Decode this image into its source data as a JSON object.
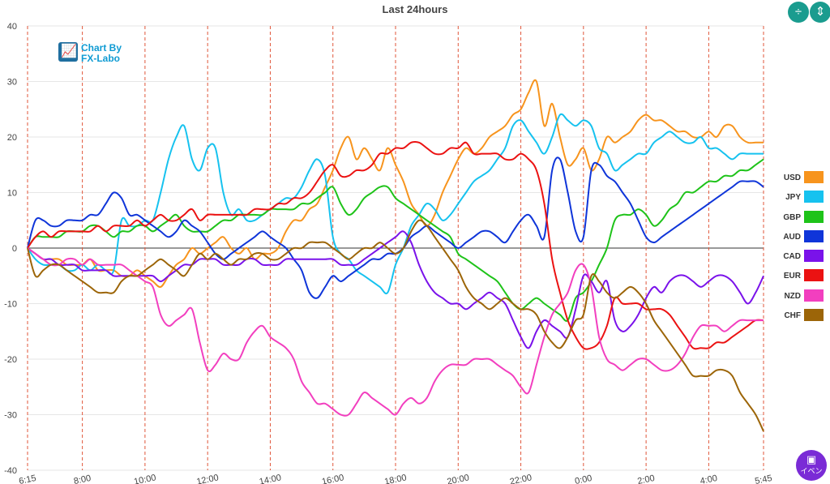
{
  "chart_data": {
    "type": "line",
    "title": "Last 24hours",
    "x": [
      "6:15",
      "6:30",
      "6:45",
      "7:00",
      "7:15",
      "7:30",
      "7:45",
      "8:00",
      "8:15",
      "8:30",
      "8:45",
      "9:00",
      "9:15",
      "9:30",
      "9:45",
      "10:00",
      "10:15",
      "10:30",
      "10:45",
      "11:00",
      "11:15",
      "11:30",
      "11:45",
      "12:00",
      "12:15",
      "12:30",
      "12:45",
      "13:00",
      "13:15",
      "13:30",
      "13:45",
      "14:00",
      "14:15",
      "14:30",
      "14:45",
      "15:00",
      "15:15",
      "15:30",
      "15:45",
      "16:00",
      "16:15",
      "16:30",
      "16:45",
      "17:00",
      "17:15",
      "17:30",
      "17:45",
      "18:00",
      "18:15",
      "18:30",
      "18:45",
      "19:00",
      "19:15",
      "19:30",
      "19:45",
      "20:00",
      "20:15",
      "20:30",
      "20:45",
      "21:00",
      "21:15",
      "21:30",
      "21:45",
      "22:00",
      "22:15",
      "22:30",
      "22:45",
      "23:00",
      "23:15",
      "23:30",
      "23:45",
      "0:00",
      "0:15",
      "0:30",
      "0:45",
      "1:00",
      "1:15",
      "1:30",
      "1:45",
      "2:00",
      "2:15",
      "2:30",
      "2:45",
      "3:00",
      "3:15",
      "3:30",
      "3:45",
      "4:00",
      "4:15",
      "4:30",
      "4:45",
      "5:00",
      "5:15",
      "5:30",
      "5:45"
    ],
    "x_ticks": [
      "6:15",
      "8:00",
      "10:00",
      "12:00",
      "14:00",
      "16:00",
      "18:00",
      "20:00",
      "22:00",
      "0:00",
      "2:00",
      "4:00",
      "5:45"
    ],
    "ylim": [
      -40,
      40
    ],
    "y_ticks": [
      40,
      30,
      20,
      10,
      0,
      -10,
      -20,
      -30,
      -40
    ],
    "grid": true,
    "legend_position": "right",
    "series": [
      {
        "name": "USD",
        "color": "#f7941d",
        "values": [
          0,
          -1,
          -2,
          -2,
          -2,
          -3,
          -3,
          -3,
          -2,
          -4,
          -4,
          -4,
          -5,
          -5,
          -4,
          -5,
          -6,
          -7,
          -5,
          -3,
          -2,
          0,
          -1,
          0,
          1,
          2,
          0,
          -1,
          0,
          -2,
          -1,
          -1,
          0,
          3,
          5,
          5,
          7,
          8,
          11,
          14,
          18,
          20,
          16,
          18,
          16,
          14,
          18,
          15,
          12,
          8,
          6,
          4,
          6,
          10,
          13,
          16,
          18,
          17,
          18,
          20,
          21,
          22,
          24,
          25,
          28,
          30,
          22,
          26,
          20,
          15,
          16,
          18,
          14,
          16,
          20,
          19,
          20,
          21,
          23,
          24,
          23,
          23,
          22,
          21,
          21,
          20,
          20,
          21,
          20,
          22,
          22,
          20,
          19,
          19,
          19
        ]
      },
      {
        "name": "JPY",
        "color": "#16c2ef",
        "values": [
          0,
          -2,
          -3,
          -3,
          -3,
          -4,
          -4,
          -3,
          -4,
          -3,
          -4,
          -4,
          5,
          4,
          4,
          5,
          5,
          10,
          16,
          20,
          22,
          16,
          14,
          18,
          18,
          10,
          6,
          7,
          5,
          5,
          6,
          7,
          8,
          9,
          9,
          11,
          14,
          16,
          13,
          2,
          -1,
          -2,
          -4,
          -5,
          -6,
          -7,
          -8,
          -3,
          0,
          4,
          6,
          8,
          7,
          5,
          6,
          8,
          10,
          12,
          13,
          14,
          16,
          18,
          22,
          23,
          21,
          19,
          17,
          20,
          24,
          23,
          22,
          23,
          22,
          18,
          17,
          14,
          15,
          16,
          17,
          17,
          19,
          20,
          21,
          20,
          19,
          19,
          20,
          18,
          18,
          17,
          16,
          17,
          17,
          17,
          17
        ]
      },
      {
        "name": "GBP",
        "color": "#1ec319",
        "values": [
          0,
          2,
          2,
          2,
          2,
          3,
          3,
          3,
          4,
          4,
          3,
          2,
          3,
          3,
          4,
          4,
          3,
          4,
          5,
          6,
          4,
          3,
          3,
          3,
          4,
          5,
          5,
          6,
          6,
          6,
          6,
          7,
          7,
          7,
          7,
          8,
          8,
          9,
          10,
          11,
          8,
          6,
          7,
          9,
          10,
          11,
          11,
          9,
          8,
          7,
          6,
          5,
          4,
          3,
          2,
          -1,
          -2,
          -3,
          -4,
          -5,
          -6,
          -8,
          -10,
          -11,
          -10,
          -9,
          -10,
          -11,
          -12,
          -13,
          -9,
          -8,
          -6,
          -3,
          0,
          5,
          6,
          6,
          7,
          6,
          4,
          5,
          7,
          8,
          10,
          10,
          11,
          12,
          12,
          13,
          13,
          14,
          14,
          15,
          16
        ]
      },
      {
        "name": "AUD",
        "color": "#0f35d9",
        "values": [
          0,
          5,
          5,
          4,
          4,
          5,
          5,
          5,
          6,
          6,
          8,
          10,
          9,
          6,
          6,
          5,
          4,
          3,
          2,
          3,
          5,
          4,
          3,
          1,
          -1,
          -2,
          -1,
          0,
          1,
          2,
          3,
          2,
          1,
          0,
          -2,
          -4,
          -8,
          -9,
          -7,
          -5,
          -6,
          -5,
          -4,
          -3,
          -2,
          -2,
          -1,
          -1,
          0,
          2,
          3,
          4,
          3,
          2,
          1,
          0,
          1,
          2,
          3,
          3,
          2,
          1,
          3,
          5,
          6,
          4,
          2,
          14,
          16,
          10,
          3,
          2,
          14,
          15,
          13,
          12,
          10,
          8,
          5,
          2,
          1,
          2,
          3,
          4,
          5,
          6,
          7,
          8,
          9,
          10,
          11,
          12,
          12,
          12,
          11
        ]
      },
      {
        "name": "CAD",
        "color": "#7a12ea",
        "values": [
          0,
          -1,
          -2,
          -2,
          -3,
          -3,
          -3,
          -4,
          -4,
          -4,
          -4,
          -5,
          -5,
          -5,
          -5,
          -5,
          -5,
          -6,
          -5,
          -4,
          -3,
          -3,
          -2,
          -2,
          -2,
          -3,
          -3,
          -3,
          -2,
          -2,
          -3,
          -3,
          -3,
          -2,
          -2,
          -2,
          -2,
          -2,
          -2,
          -2,
          -3,
          -3,
          -3,
          -2,
          -1,
          0,
          1,
          2,
          3,
          1,
          -3,
          -6,
          -8,
          -9,
          -10,
          -10,
          -11,
          -10,
          -9,
          -8,
          -9,
          -10,
          -13,
          -16,
          -18,
          -15,
          -13,
          -14,
          -15,
          -16,
          -11,
          -5,
          -6,
          -8,
          -6,
          -13,
          -15,
          -14,
          -12,
          -9,
          -7,
          -8,
          -6,
          -5,
          -5,
          -6,
          -7,
          -6,
          -5,
          -5,
          -6,
          -8,
          -10,
          -8,
          -5
        ]
      },
      {
        "name": "EUR",
        "color": "#eb1212",
        "values": [
          0,
          2,
          3,
          2,
          3,
          3,
          3,
          3,
          3,
          4,
          3,
          4,
          4,
          4,
          5,
          4,
          5,
          6,
          5,
          5,
          6,
          7,
          5,
          6,
          6,
          6,
          6,
          6,
          6,
          7,
          7,
          7,
          8,
          8,
          9,
          9,
          10,
          12,
          14,
          15,
          13,
          13,
          14,
          14,
          15,
          17,
          17,
          18,
          18,
          19,
          19,
          18,
          17,
          17,
          18,
          18,
          19,
          17,
          17,
          17,
          17,
          16,
          16,
          17,
          16,
          14,
          8,
          -2,
          -8,
          -13,
          -16,
          -18,
          -18,
          -17,
          -14,
          -9,
          -10,
          -10,
          -10,
          -11,
          -11,
          -11,
          -12,
          -14,
          -16,
          -18,
          -18,
          -18,
          -17,
          -17,
          -16,
          -15,
          -14,
          -13,
          -13
        ]
      },
      {
        "name": "NZD",
        "color": "#f23fbf",
        "values": [
          0,
          -1,
          -2,
          -3,
          -3,
          -2,
          -2,
          -3,
          -2,
          -3,
          -3,
          -3,
          -3,
          -4,
          -5,
          -6,
          -7,
          -12,
          -14,
          -13,
          -12,
          -11,
          -17,
          -22,
          -21,
          -19,
          -20,
          -20,
          -17,
          -15,
          -14,
          -16,
          -17,
          -18,
          -20,
          -24,
          -26,
          -28,
          -28,
          -29,
          -30,
          -30,
          -28,
          -26,
          -27,
          -28,
          -29,
          -30,
          -28,
          -27,
          -28,
          -27,
          -24,
          -22,
          -21,
          -21,
          -21,
          -20,
          -20,
          -20,
          -21,
          -22,
          -23,
          -25,
          -26,
          -21,
          -16,
          -12,
          -10,
          -8,
          -4,
          -3,
          -7,
          -16,
          -20,
          -21,
          -22,
          -21,
          -20,
          -20,
          -21,
          -22,
          -22,
          -21,
          -19,
          -16,
          -14,
          -14,
          -14,
          -15,
          -14,
          -13,
          -13,
          -13,
          -13
        ]
      },
      {
        "name": "CHF",
        "color": "#9c6508",
        "values": [
          0,
          -5,
          -4,
          -3,
          -3,
          -4,
          -5,
          -6,
          -7,
          -8,
          -8,
          -8,
          -6,
          -5,
          -5,
          -4,
          -3,
          -2,
          -3,
          -4,
          -5,
          -3,
          -1,
          -2,
          -1,
          -2,
          -3,
          -2,
          -2,
          -1,
          -1,
          -2,
          -2,
          -1,
          0,
          0,
          1,
          1,
          1,
          0,
          -1,
          -2,
          -1,
          0,
          0,
          1,
          0,
          -1,
          0,
          3,
          5,
          4,
          2,
          0,
          -2,
          -4,
          -7,
          -9,
          -10,
          -11,
          -10,
          -9,
          -10,
          -11,
          -11,
          -12,
          -15,
          -17,
          -18,
          -16,
          -13,
          -12,
          -5,
          -6,
          -8,
          -9,
          -8,
          -7,
          -8,
          -10,
          -13,
          -15,
          -17,
          -19,
          -21,
          -23,
          -23,
          -23,
          -22,
          -22,
          -23,
          -26,
          -28,
          -30,
          -33
        ]
      }
    ]
  },
  "logo": {
    "line1": "Chart By",
    "line2": "FX-Labo"
  },
  "controls": {
    "collapse_icon": "collapse-icon",
    "expand_icon": "expand-icon"
  },
  "event_button": {
    "label": "イベン",
    "icon": "calendar-icon"
  }
}
